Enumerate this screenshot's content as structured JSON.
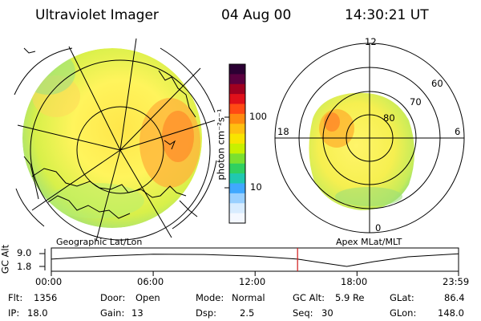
{
  "header": {
    "instrument": "Ultraviolet Imager",
    "date": "04 Aug 00",
    "time": "14:30:21 UT"
  },
  "geo_panel": {
    "caption": "Geographic Lat/Lon"
  },
  "apex_panel": {
    "caption": "Apex MLat/MLT",
    "mlt_labels": {
      "top": "12",
      "left": "18",
      "right": "6",
      "bottom": "0"
    },
    "lat_labels": [
      "60",
      "70",
      "80"
    ]
  },
  "colorbar": {
    "unit_label": "photon cm⁻²s⁻¹",
    "ticks": [
      "100",
      "10"
    ],
    "colors": [
      "#2b0033",
      "#5a003f",
      "#a00020",
      "#e0101a",
      "#ff4a14",
      "#ff8a10",
      "#ffbf10",
      "#f8e400",
      "#c8f000",
      "#7ae030",
      "#30d060",
      "#20c8b0",
      "#40a8ff",
      "#9ad0ff",
      "#d8ecff",
      "#f4f8ff"
    ]
  },
  "altitude_plot": {
    "ylabel": "GC Alt",
    "yticks": [
      "9.0",
      "1.8"
    ],
    "xticks": [
      "00:00",
      "06:00",
      "12:00",
      "18:00",
      "23:59"
    ],
    "marker_hours": 14.5,
    "marker_color": "#d01818",
    "curve": [
      [
        0.0,
        5.9
      ],
      [
        3.0,
        7.6
      ],
      [
        6.0,
        8.7
      ],
      [
        9.0,
        8.5
      ],
      [
        12.0,
        7.5
      ],
      [
        14.5,
        5.9
      ],
      [
        16.0,
        3.8
      ],
      [
        17.4,
        1.8
      ],
      [
        19.0,
        4.5
      ],
      [
        21.0,
        7.2
      ],
      [
        23.98,
        8.9
      ]
    ]
  },
  "status": {
    "flt_label": "Flt:",
    "flt_value": "1356",
    "ip_label": "IP:",
    "ip_value": "18.0",
    "door_label": "Door:",
    "door_value": "Open",
    "gain_label": "Gain:",
    "gain_value": "13",
    "mode_label": "Mode:",
    "mode_value": "Normal",
    "dsp_label": "Dsp:",
    "dsp_value": "2.5",
    "gcalt_label": "GC Alt:",
    "gcalt_value": "5.9 Re",
    "seq_label": "Seq:",
    "seq_value": "30",
    "glat_label": "GLat:",
    "glat_value": "86.4",
    "glon_label": "GLon:",
    "glon_value": "148.0"
  }
}
